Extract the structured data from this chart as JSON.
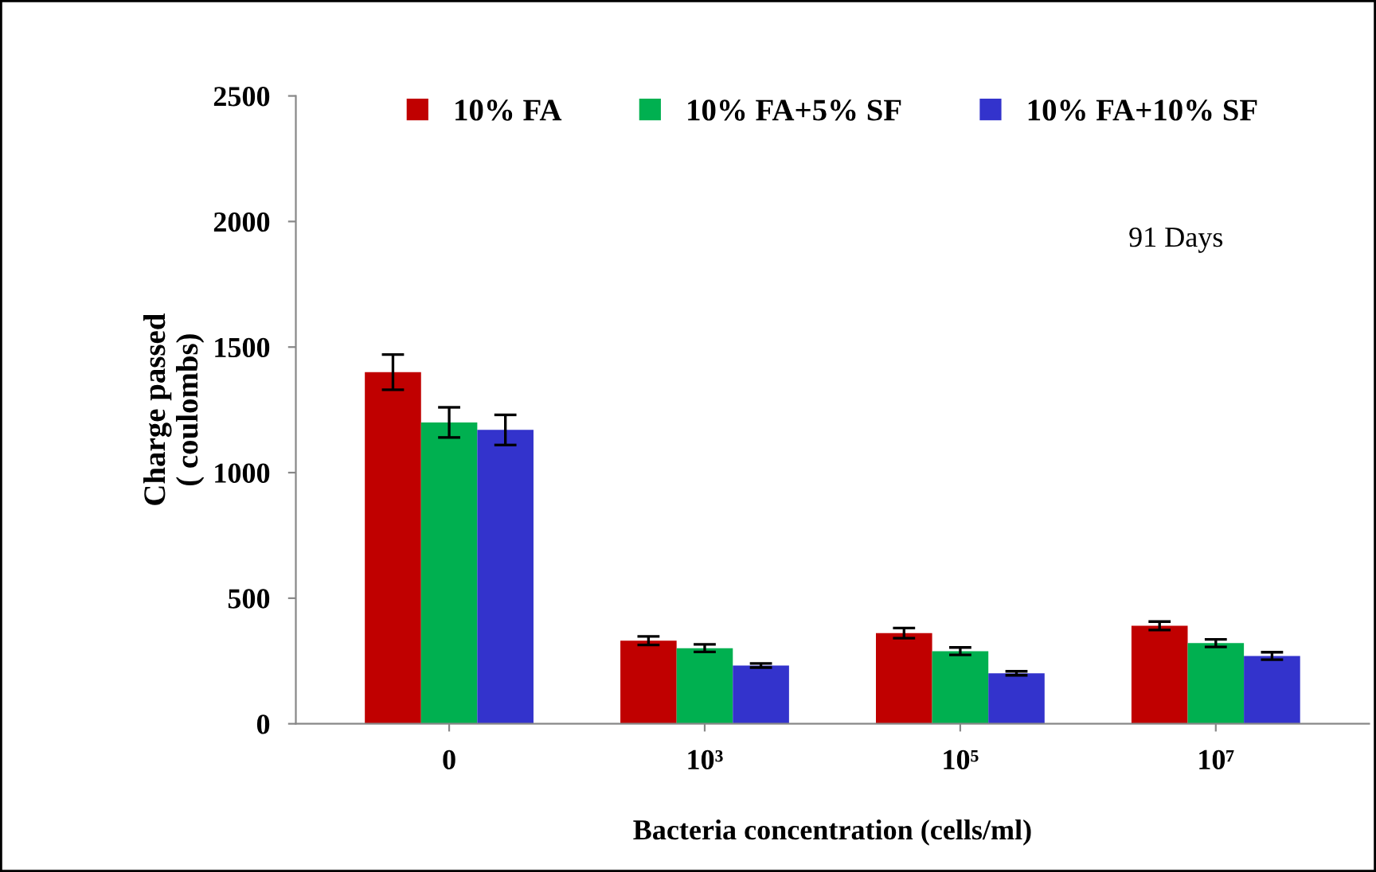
{
  "chart_data": {
    "type": "bar",
    "xlabel": "Bacteria concentration (cells/ml)",
    "ylabel": "Charge passed\n( coulombs)",
    "categories": [
      "0",
      "10³",
      "10⁵",
      "10⁷"
    ],
    "series": [
      {
        "name": "10% FA",
        "color": "#c00000",
        "values": [
          1400,
          331,
          361,
          390
        ],
        "errors": [
          70,
          17,
          20,
          17
        ]
      },
      {
        "name": "10% FA+5% SF",
        "color": "#00b050",
        "values": [
          1200,
          301,
          289,
          321
        ],
        "errors": [
          60,
          15,
          15,
          15
        ]
      },
      {
        "name": "10% FA+10% SF",
        "color": "#3333cc",
        "values": [
          1170,
          232,
          201,
          270
        ],
        "errors": [
          60,
          8,
          8,
          15
        ]
      }
    ],
    "ylim": [
      0,
      2500
    ],
    "yticks": [
      0,
      500,
      1000,
      1500,
      2000,
      2500
    ],
    "annotations": [
      "91 Days"
    ],
    "legend": "top",
    "grid": false
  }
}
